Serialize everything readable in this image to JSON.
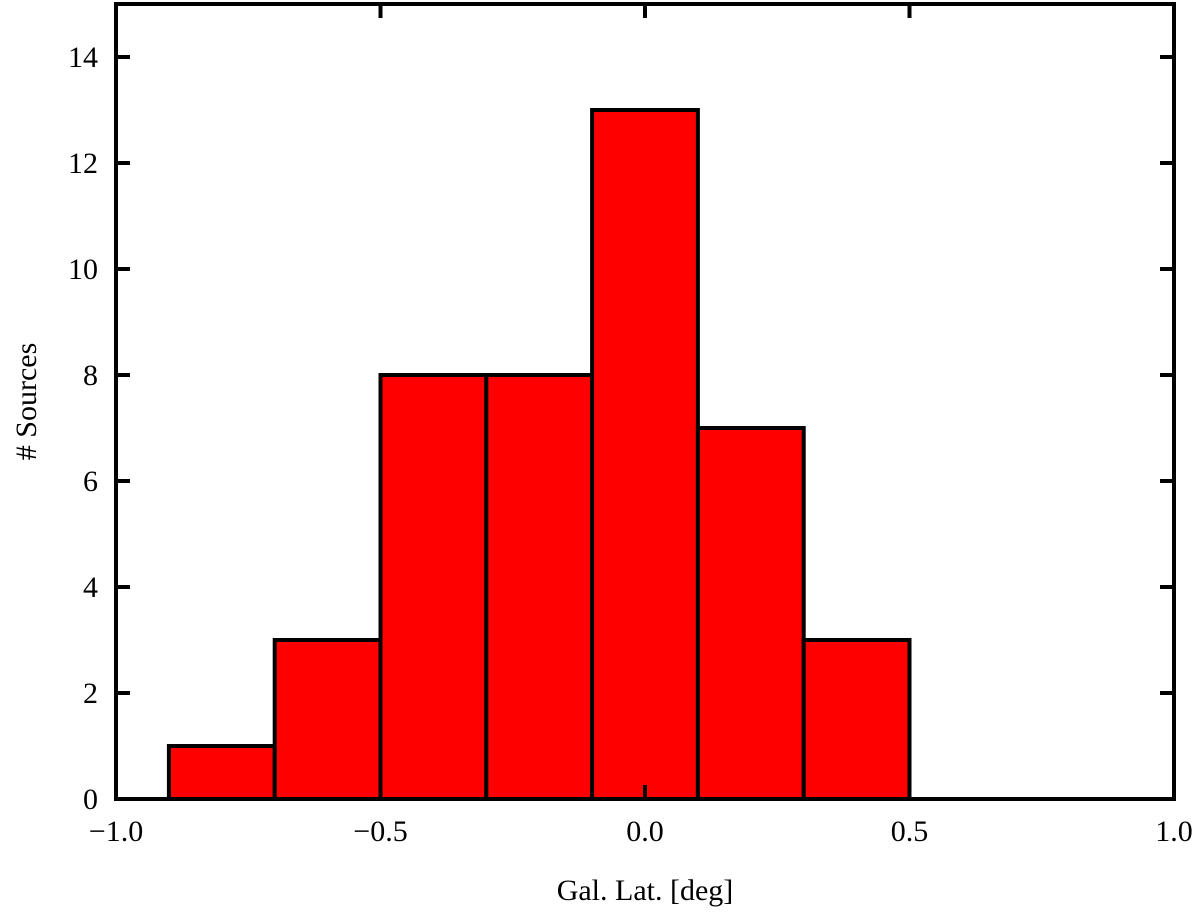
{
  "chart_data": {
    "type": "bar",
    "subtype": "histogram",
    "xlabel": "Gal. Lat. [deg]",
    "ylabel": "# Sources",
    "xlim": [
      -1.0,
      1.0
    ],
    "ylim": [
      0,
      15
    ],
    "xticks": [
      -1.0,
      -0.5,
      0.0,
      0.5,
      1.0
    ],
    "xtick_labels": [
      "−1.0",
      "−0.5",
      "0.0",
      "0.5",
      "1.0"
    ],
    "yticks": [
      0,
      2,
      4,
      6,
      8,
      10,
      12,
      14
    ],
    "ytick_labels": [
      "0",
      "2",
      "4",
      "6",
      "8",
      "10",
      "12",
      "14"
    ],
    "bin_edges": [
      -0.9,
      -0.7,
      -0.5,
      -0.3,
      -0.1,
      0.1,
      0.3,
      0.5
    ],
    "values": [
      1,
      3,
      8,
      8,
      13,
      7,
      3
    ],
    "bar_color": "#ff0000",
    "edge_color": "#000000",
    "grid": false,
    "legend": "none"
  }
}
